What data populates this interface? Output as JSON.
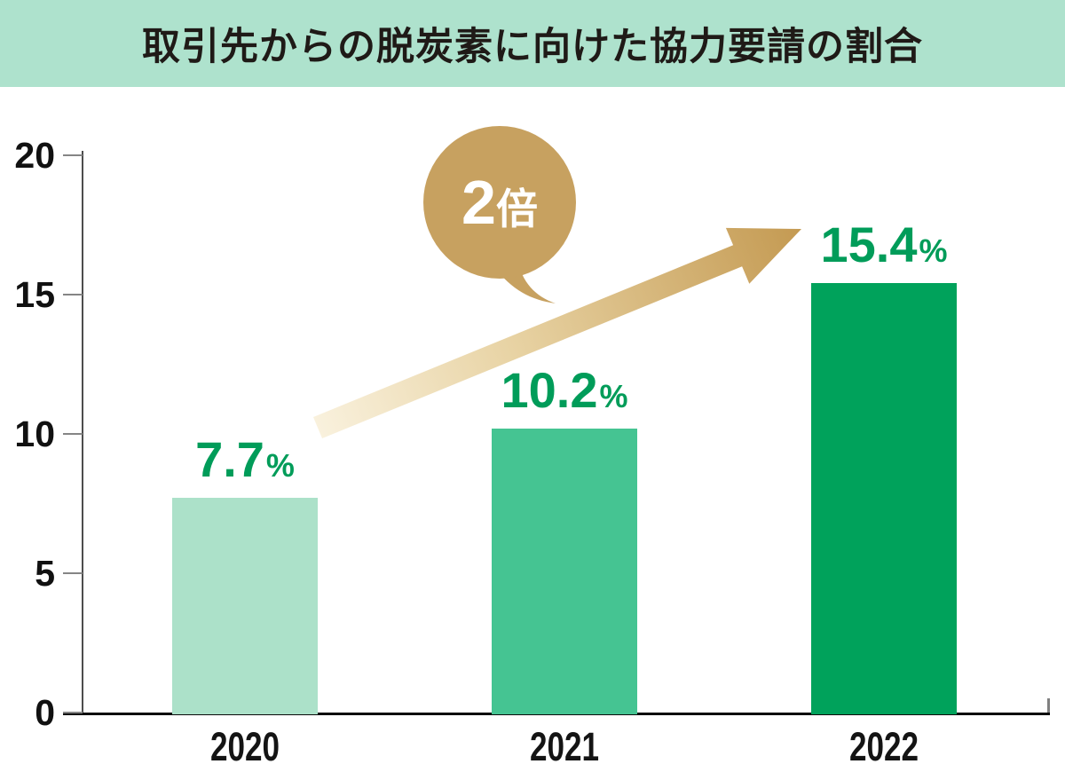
{
  "header": {
    "title": "取引先からの脱炭素に向けた協力要請の割合"
  },
  "chart_data": {
    "type": "bar",
    "title": "取引先からの脱炭素に向けた協力要請の割合",
    "categories": [
      "2020",
      "2021",
      "2022"
    ],
    "values": [
      7.7,
      10.2,
      15.4
    ],
    "value_labels": [
      "7.7",
      "10.2",
      "15.4"
    ],
    "unit": "%",
    "xlabel": "",
    "ylabel": "",
    "ylim": [
      0,
      20
    ],
    "yticks": [
      0,
      5,
      10,
      15,
      20
    ],
    "grid": false,
    "legend": "none",
    "bar_colors": [
      "#ace1c9",
      "#45c492",
      "#00a25b"
    ],
    "annotation": "2倍"
  },
  "annotation": {
    "number": "2",
    "suffix": "倍"
  },
  "colors": {
    "title_band_bg": "#aee2cd",
    "title_text": "#1f1a17",
    "bar_2020": "#ace1c9",
    "bar_2021": "#45c492",
    "bar_2022": "#00a25b",
    "value_label_green": "#009c59",
    "bubble_gold": "#c7a160",
    "arrow_gold_dark": "#c49a52",
    "arrow_gold_light": "#f9f1dd",
    "axis_black": "#0a0a0a",
    "axis_gray": "#4d4d4d"
  }
}
